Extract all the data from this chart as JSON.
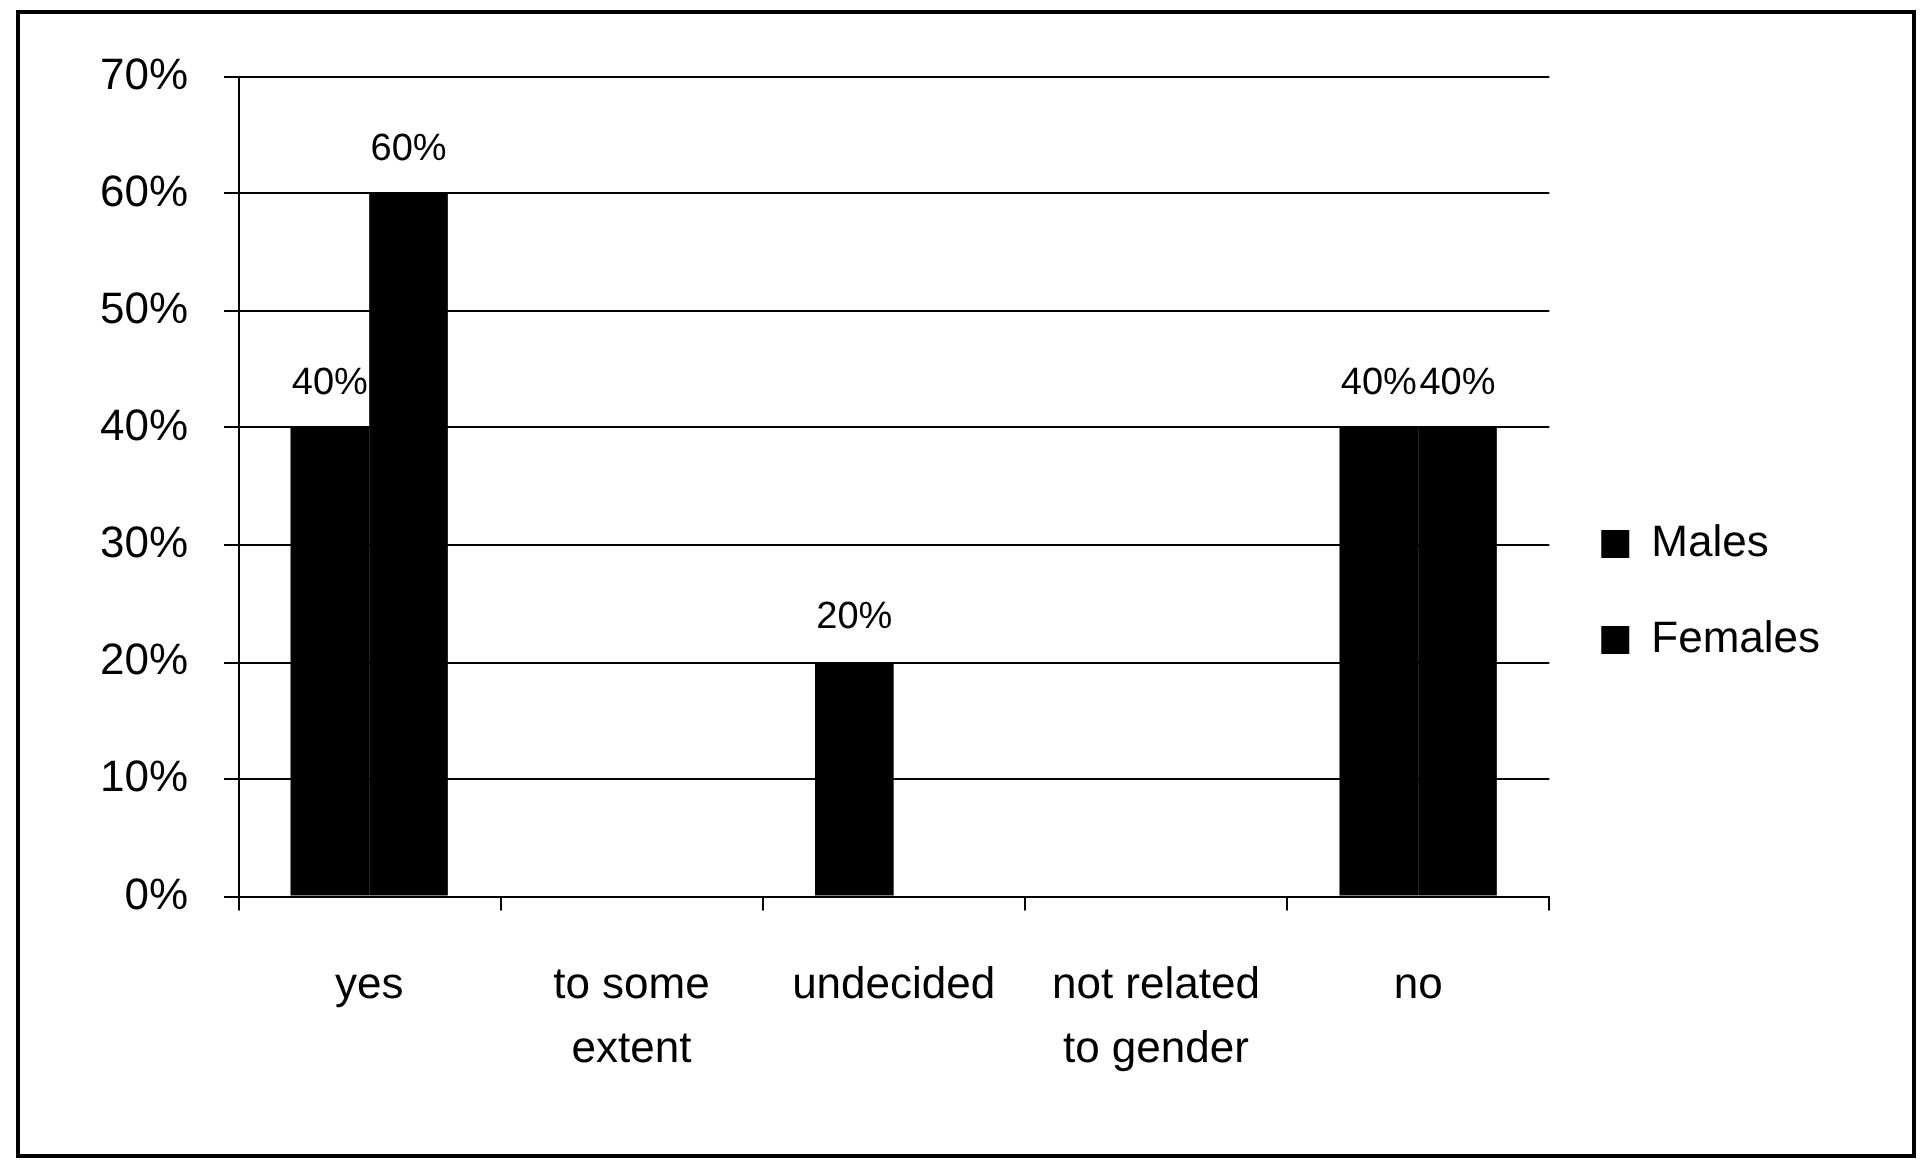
{
  "chart_data": {
    "type": "bar",
    "categories": [
      "yes",
      "to some extent",
      "undecided",
      "not related to gender",
      "no"
    ],
    "series": [
      {
        "name": "Males",
        "color": "#000000",
        "values": [
          40,
          null,
          20,
          null,
          40
        ],
        "value_labels": [
          "40%",
          null,
          "20%",
          null,
          "40%"
        ]
      },
      {
        "name": "Females",
        "color": "#000000",
        "values": [
          60,
          null,
          null,
          null,
          40
        ],
        "value_labels": [
          "60%",
          null,
          null,
          null,
          "40%"
        ]
      }
    ],
    "ylim": [
      0,
      70
    ],
    "yticks": [
      {
        "value": 0,
        "label": "0%"
      },
      {
        "value": 10,
        "label": "10%"
      },
      {
        "value": 20,
        "label": "20%"
      },
      {
        "value": 30,
        "label": "30%"
      },
      {
        "value": 40,
        "label": "40%"
      },
      {
        "value": 50,
        "label": "50%"
      },
      {
        "value": 60,
        "label": "60%"
      },
      {
        "value": 70,
        "label": "70%"
      }
    ],
    "grid": "y",
    "legend": "right"
  }
}
